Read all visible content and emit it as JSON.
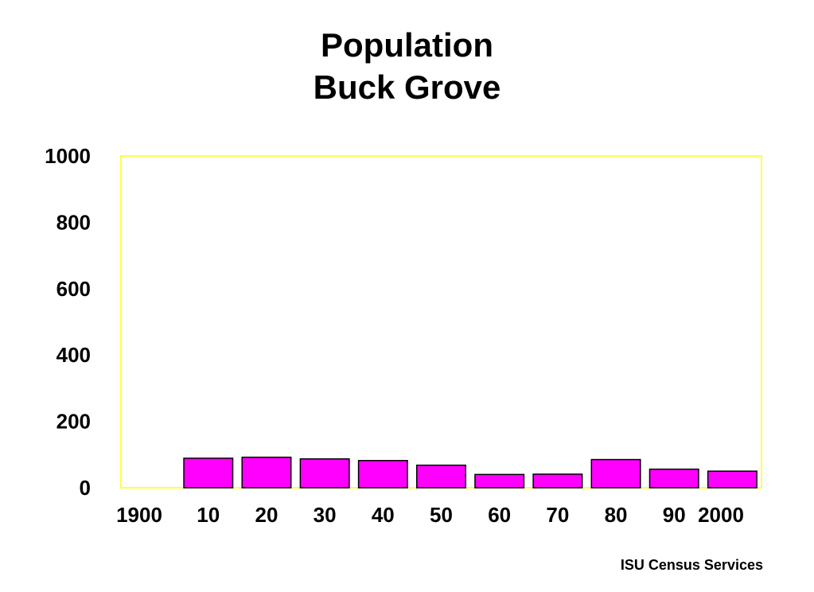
{
  "chart_data": {
    "type": "bar",
    "title": [
      "Population",
      "Buck Grove"
    ],
    "categories": [
      "1900",
      "10",
      "20",
      "30",
      "40",
      "50",
      "60",
      "70",
      "80",
      "90",
      "2000"
    ],
    "values": [
      0,
      89,
      92,
      87,
      82,
      68,
      40,
      41,
      85,
      56,
      50
    ],
    "xlabel": "",
    "ylabel": "",
    "ylim": [
      0,
      1000
    ],
    "yticks": [
      "0",
      "200",
      "400",
      "600",
      "800",
      "1000"
    ],
    "grid": false,
    "colors": {
      "bar": "#ff00ff",
      "bar_outline": "#000000",
      "plot_border": "#ffff00"
    }
  },
  "footer": {
    "credit": "ISU Census Services"
  }
}
